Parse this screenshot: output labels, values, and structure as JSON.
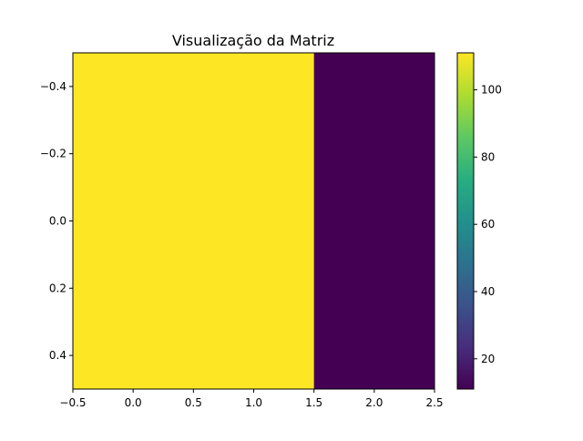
{
  "chart_data": {
    "type": "heatmap",
    "title": "Visualização da Matriz",
    "xlabel": "",
    "ylabel": "",
    "xlim": [
      -0.5,
      2.5
    ],
    "ylim": [
      0.5,
      -0.5
    ],
    "y_inverted": true,
    "values": [
      [
        111,
        111,
        11
      ]
    ],
    "x_ticks": [
      -0.5,
      0.0,
      0.5,
      1.0,
      1.5,
      2.0,
      2.5
    ],
    "x_tick_labels": [
      "−0.5",
      "0.0",
      "0.5",
      "1.0",
      "1.5",
      "2.0",
      "2.5"
    ],
    "y_ticks": [
      -0.4,
      -0.2,
      0.0,
      0.2,
      0.4
    ],
    "y_tick_labels": [
      "−0.4",
      "−0.2",
      "0.0",
      "0.2",
      "0.4"
    ],
    "colormap": "viridis",
    "colorbar": {
      "range": [
        11,
        111
      ],
      "ticks": [
        20,
        40,
        60,
        80,
        100
      ],
      "tick_labels": [
        "20",
        "40",
        "60",
        "80",
        "100"
      ]
    },
    "grid": false,
    "legend": "none"
  }
}
